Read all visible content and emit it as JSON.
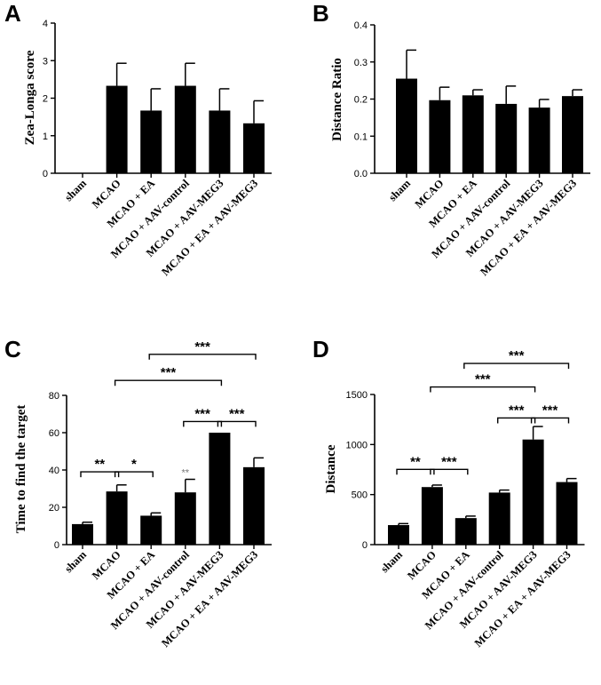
{
  "colors": {
    "bar": "#000000",
    "axis": "#000000",
    "sig_gray": "#777777"
  },
  "chart_data": [
    {
      "panel_label": "A",
      "type": "bar",
      "categories": [
        "sham",
        "MCAO",
        "MCAO + EA",
        "MCAO + AAV-control",
        "MCAO + AAV-MEG3",
        "MCAO + EA + AAV-MEG3"
      ],
      "values": [
        0,
        2.33,
        1.67,
        2.33,
        1.67,
        1.33
      ],
      "errors": [
        0,
        0.6,
        0.58,
        0.6,
        0.58,
        0.6
      ],
      "ylabel": "Zea-Longa score",
      "xlabel": "",
      "ylim": [
        0,
        4
      ],
      "yticks": [
        "0",
        "1",
        "2",
        "3",
        "4"
      ],
      "yticks_values": [
        0,
        1,
        2,
        3,
        4
      ],
      "significance": []
    },
    {
      "panel_label": "B",
      "type": "bar",
      "categories": [
        "sham",
        "MCAO",
        "MCAO + EA",
        "MCAO + AAV-control",
        "MCAO + AAV-MEG3",
        "MCAO + EA + AAV-MEG3"
      ],
      "values": [
        0.255,
        0.197,
        0.21,
        0.187,
        0.177,
        0.208
      ],
      "errors": [
        0.077,
        0.035,
        0.015,
        0.048,
        0.022,
        0.017
      ],
      "ylabel": "Distance Ratio",
      "xlabel": "",
      "ylim": [
        0,
        0.4
      ],
      "yticks": [
        "0.0",
        "0.1",
        "0.2",
        "0.3",
        "0.4"
      ],
      "yticks_values": [
        0,
        0.1,
        0.2,
        0.3,
        0.4
      ],
      "significance": []
    },
    {
      "panel_label": "C",
      "type": "bar",
      "categories": [
        "sham",
        "MCAO",
        "MCAO + EA",
        "MCAO + AAV-control",
        "MCAO + AAV-MEG3",
        "MCAO + EA + AAV-MEG3"
      ],
      "values": [
        11,
        28.5,
        15.5,
        28,
        60,
        41.5
      ],
      "errors": [
        1,
        3.5,
        1.5,
        7,
        0,
        5
      ],
      "ylabel": "Time to find the target",
      "xlabel": "",
      "ylim": [
        0,
        80
      ],
      "yticks": [
        "0",
        "20",
        "40",
        "60",
        "80"
      ],
      "yticks_values": [
        0,
        20,
        40,
        60,
        80
      ],
      "significance": [
        {
          "from": 0,
          "to": 1,
          "label": "**",
          "level": 39
        },
        {
          "from": 1,
          "to": 2,
          "label": "*",
          "level": 39
        },
        {
          "from": 3,
          "to": 4,
          "label": "***",
          "level": 66
        },
        {
          "from": 4,
          "to": 5,
          "label": "***",
          "level": 66
        },
        {
          "from": 1,
          "to": 4,
          "label": "***",
          "level": 88
        },
        {
          "from": 2,
          "to": 5,
          "label": "***",
          "level": 102
        }
      ],
      "annotations": [
        {
          "index": 3,
          "label": "**",
          "level": 37,
          "gray": true
        }
      ]
    },
    {
      "panel_label": "D",
      "type": "bar",
      "categories": [
        "sham",
        "MCAO",
        "MCAO + EA",
        "MCAO + AAV-control",
        "MCAO + AAV-MEG3",
        "MCAO + EA + AAV-MEG3"
      ],
      "values": [
        195,
        575,
        265,
        520,
        1050,
        625
      ],
      "errors": [
        15,
        20,
        20,
        25,
        130,
        35
      ],
      "ylabel": "Distance",
      "xlabel": "",
      "ylim": [
        0,
        1500
      ],
      "yticks": [
        "0",
        "500",
        "1000",
        "1500"
      ],
      "yticks_values": [
        0,
        500,
        1000,
        1500
      ],
      "significance": [
        {
          "from": 0,
          "to": 1,
          "label": "**",
          "level": 752
        },
        {
          "from": 1,
          "to": 2,
          "label": "***",
          "level": 752
        },
        {
          "from": 3,
          "to": 4,
          "label": "***",
          "level": 1265
        },
        {
          "from": 4,
          "to": 5,
          "label": "***",
          "level": 1265
        },
        {
          "from": 1,
          "to": 4,
          "label": "***",
          "level": 1575
        },
        {
          "from": 2,
          "to": 5,
          "label": "***",
          "level": 1810
        }
      ]
    }
  ]
}
